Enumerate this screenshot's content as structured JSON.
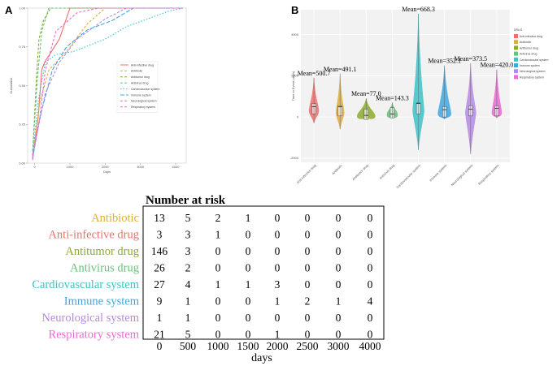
{
  "colors": {
    "anti_infective": "#ef6f6f",
    "antibiotic": "#dcae3e",
    "antitumor": "#8cab2a",
    "antivirus": "#6ac07a",
    "cardiovascular": "#3cc3c7",
    "immune": "#3fa6e0",
    "neurological": "#b48ae6",
    "respiratory": "#ea6ad4"
  },
  "chart_data": [
    {
      "panel": "A",
      "type": "line",
      "title": "",
      "xlabel": "Days",
      "ylabel": "Cumulative",
      "xlim": [
        -200,
        4300
      ],
      "ylim": [
        0,
        1
      ],
      "xticks": [
        0,
        1000,
        2000,
        3000,
        4000
      ],
      "xtick_labels": [
        "0",
        "1000",
        "2000",
        "3000",
        "4000"
      ],
      "yticks": [
        0,
        0.25,
        0.5,
        0.75,
        1
      ],
      "ytick_labels": [
        "0.00",
        "0.25",
        "0.50",
        "0.75",
        "1.00"
      ],
      "legend": [
        "Anti-infective drug",
        "Antibiotic",
        "Antitumor drug",
        "Antivirus drug",
        "Cardiovascular system",
        "Immune system",
        "Neurological system",
        "Respiratory system"
      ],
      "series": [
        {
          "name": "Anti-infective drug",
          "color_key": "anti_infective",
          "dash": "",
          "points": [
            [
              -60,
              0.02
            ],
            [
              100,
              0.3
            ],
            [
              200,
              0.6
            ],
            [
              280,
              0.65
            ],
            [
              700,
              0.8
            ],
            [
              1000,
              1.0
            ],
            [
              4200,
              1.0
            ]
          ]
        },
        {
          "name": "Antibiotic",
          "color_key": "antibiotic",
          "dash": "3,2",
          "points": [
            [
              -60,
              0.05
            ],
            [
              150,
              0.4
            ],
            [
              400,
              0.6
            ],
            [
              900,
              0.72
            ],
            [
              1500,
              0.9
            ],
            [
              2000,
              1.0
            ],
            [
              4200,
              1.0
            ]
          ]
        },
        {
          "name": "Antitumor drug",
          "color_key": "antitumor",
          "dash": "3,2",
          "points": [
            [
              -60,
              0.05
            ],
            [
              50,
              0.55
            ],
            [
              120,
              0.8
            ],
            [
              250,
              0.92
            ],
            [
              450,
              1.0
            ],
            [
              4200,
              1.0
            ]
          ]
        },
        {
          "name": "Antivirus drug",
          "color_key": "antivirus",
          "dash": "3,2",
          "points": [
            [
              -60,
              0.08
            ],
            [
              80,
              0.55
            ],
            [
              200,
              0.85
            ],
            [
              400,
              1.0
            ],
            [
              4200,
              1.0
            ]
          ]
        },
        {
          "name": "Cardiovascular system",
          "color_key": "cardiovascular",
          "dash": "1.5,2",
          "points": [
            [
              -60,
              0.05
            ],
            [
              100,
              0.4
            ],
            [
              300,
              0.65
            ],
            [
              600,
              0.7
            ],
            [
              1100,
              0.72
            ],
            [
              2000,
              0.8
            ],
            [
              2600,
              0.88
            ],
            [
              3200,
              0.93
            ],
            [
              3800,
              0.98
            ],
            [
              4200,
              1.0
            ]
          ]
        },
        {
          "name": "Immune system",
          "color_key": "immune",
          "dash": "5,2",
          "points": [
            [
              -60,
              0.03
            ],
            [
              150,
              0.3
            ],
            [
              500,
              0.6
            ],
            [
              900,
              0.75
            ],
            [
              1500,
              0.86
            ],
            [
              2200,
              0.92
            ],
            [
              2800,
              1.0
            ],
            [
              4200,
              1.0
            ]
          ]
        },
        {
          "name": "Neurological system",
          "color_key": "neurological",
          "dash": "3,2",
          "points": [
            [
              -60,
              0.05
            ],
            [
              300,
              0.45
            ],
            [
              700,
              0.65
            ],
            [
              1200,
              0.8
            ],
            [
              2000,
              0.93
            ],
            [
              2600,
              1.0
            ],
            [
              4200,
              1.0
            ]
          ]
        },
        {
          "name": "Respiratory system",
          "color_key": "respiratory",
          "dash": "3,2",
          "points": [
            [
              -60,
              0.04
            ],
            [
              150,
              0.3
            ],
            [
              300,
              0.6
            ],
            [
              600,
              0.85
            ],
            [
              1200,
              0.97
            ],
            [
              1800,
              1.0
            ],
            [
              4200,
              1.0
            ]
          ]
        }
      ]
    },
    {
      "panel": "B",
      "type": "violin",
      "title": "",
      "xlabel": "",
      "ylabel": "Time to Event (days)",
      "ylim": [
        -2200,
        5200
      ],
      "yticks": [
        -2000,
        0,
        2000,
        4000
      ],
      "ytick_labels": [
        "-2000",
        "0",
        "2000",
        "4000"
      ],
      "legend_title": "DRUG",
      "categories": [
        "Anti-infective drug",
        "Antibiotic",
        "Antitumor drug",
        "Antivirus drug",
        "Cardiovascular system",
        "Immune system",
        "Neurological system",
        "Respiratory system"
      ],
      "means": [
        500.7,
        491.1,
        77.0,
        143.3,
        668.3,
        352.1,
        373.5,
        420.0
      ],
      "mean_labels": [
        "Mean=500.7",
        "Mean=491.1",
        "Mean=77.0",
        "Mean=143.3",
        "Mean=668.3",
        "Mean=352.1",
        "Mean=373.5",
        "Mean=420.0"
      ],
      "ranges": [
        [
          -300,
          1900
        ],
        [
          -600,
          2100
        ],
        [
          -100,
          900
        ],
        [
          -50,
          700
        ],
        [
          -1600,
          5000
        ],
        [
          -100,
          2500
        ],
        [
          -1800,
          2600
        ],
        [
          -50,
          2300
        ]
      ],
      "medians": [
        300,
        200,
        30,
        100,
        300,
        150,
        200,
        200
      ]
    },
    {
      "panel": "risk_table",
      "type": "table",
      "title": "Number at risk",
      "xlabel": "days",
      "columns": [
        "0",
        "500",
        "1000",
        "1500",
        "2000",
        "2500",
        "3000",
        "4000"
      ],
      "rows": [
        {
          "name": "Antibiotic",
          "values": [
            13,
            5,
            2,
            1,
            0,
            0,
            0,
            0
          ]
        },
        {
          "name": "Anti-infective drug",
          "values": [
            3,
            3,
            1,
            0,
            0,
            0,
            0,
            0
          ]
        },
        {
          "name": "Antitumor drug",
          "values": [
            146,
            3,
            0,
            0,
            0,
            0,
            0,
            0
          ]
        },
        {
          "name": "Antivirus drug",
          "values": [
            26,
            2,
            0,
            0,
            0,
            0,
            0,
            0
          ]
        },
        {
          "name": "Cardiovascular system",
          "values": [
            27,
            4,
            1,
            1,
            3,
            0,
            0,
            0
          ]
        },
        {
          "name": "Immune system",
          "values": [
            9,
            1,
            0,
            0,
            1,
            2,
            1,
            4
          ]
        },
        {
          "name": "Neurological system",
          "values": [
            1,
            1,
            0,
            0,
            0,
            0,
            0,
            0
          ]
        },
        {
          "name": "Respiratory system",
          "values": [
            21,
            5,
            0,
            0,
            1,
            0,
            0,
            0
          ]
        }
      ]
    }
  ]
}
